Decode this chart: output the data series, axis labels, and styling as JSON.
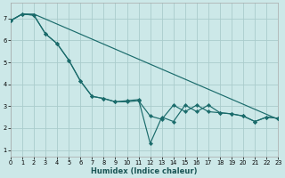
{
  "xlabel": "Humidex (Indice chaleur)",
  "bg_color": "#cce8e8",
  "line_color": "#1a6b6b",
  "grid_color": "#aacccc",
  "xlim": [
    0,
    23
  ],
  "ylim": [
    0.7,
    7.7
  ],
  "xticks": [
    0,
    1,
    2,
    3,
    4,
    5,
    6,
    7,
    8,
    9,
    10,
    11,
    12,
    13,
    14,
    15,
    16,
    17,
    18,
    19,
    20,
    21,
    22,
    23
  ],
  "yticks": [
    1,
    2,
    3,
    4,
    5,
    6,
    7
  ],
  "line1_x": [
    0,
    1,
    2,
    23
  ],
  "line1_y": [
    6.9,
    7.2,
    7.2,
    2.4
  ],
  "line2_x": [
    0,
    1,
    2,
    3,
    4,
    5,
    6,
    7,
    8,
    9,
    10,
    11,
    12,
    13,
    14,
    15,
    16,
    17,
    18,
    19,
    20,
    21,
    22,
    23
  ],
  "line2_y": [
    6.9,
    7.2,
    7.15,
    6.3,
    5.85,
    5.1,
    4.15,
    3.45,
    3.35,
    3.2,
    3.2,
    3.25,
    2.55,
    2.4,
    3.05,
    2.75,
    3.05,
    2.75,
    2.7,
    2.65,
    2.55,
    2.3,
    2.5,
    2.45
  ],
  "line3_x": [
    0,
    1,
    2,
    3,
    4,
    5,
    6,
    7,
    8,
    9,
    10,
    11,
    12,
    13,
    14,
    15,
    16,
    17,
    18,
    19,
    20,
    21,
    22,
    23
  ],
  "line3_y": [
    6.9,
    7.2,
    7.15,
    6.3,
    5.85,
    5.1,
    4.15,
    3.45,
    3.35,
    3.2,
    3.25,
    3.3,
    1.3,
    2.5,
    2.3,
    3.05,
    2.75,
    3.05,
    2.7,
    2.65,
    2.55,
    2.3,
    2.5,
    2.45
  ]
}
